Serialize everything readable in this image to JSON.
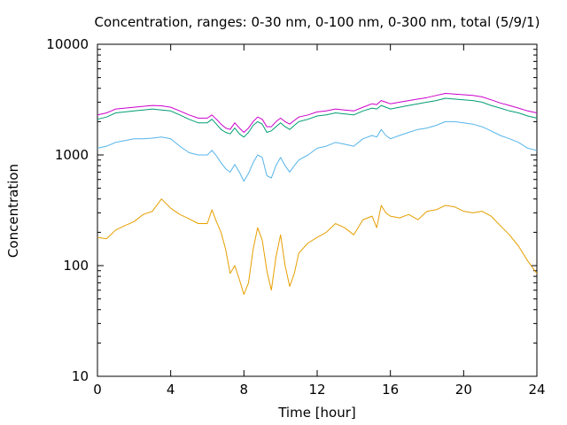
{
  "chart_data": {
    "type": "line",
    "title": "Concentration, ranges: 0-30 nm, 0-100 nm, 0-300 nm, total (5/9/1)",
    "xlabel": "Time [hour]",
    "ylabel": "Concentration",
    "xlim": [
      0,
      24
    ],
    "ylim": [
      10,
      10000
    ],
    "yscale": "log",
    "grid": false,
    "legend": "none",
    "x_ticks": [
      0,
      4,
      8,
      12,
      16,
      20,
      24
    ],
    "x_tick_labels": [
      "0",
      "4",
      "8",
      "12",
      "16",
      "20",
      "24"
    ],
    "y_ticks": [
      10,
      100,
      1000,
      10000
    ],
    "y_tick_labels": [
      "10",
      "100",
      "1000",
      "10000"
    ],
    "x": [
      0,
      0.5,
      1,
      1.5,
      2,
      2.5,
      3,
      3.5,
      4,
      4.5,
      5,
      5.5,
      6,
      6.25,
      6.5,
      6.75,
      7,
      7.25,
      7.5,
      7.75,
      8,
      8.25,
      8.5,
      8.75,
      9,
      9.25,
      9.5,
      9.75,
      10,
      10.25,
      10.5,
      10.75,
      11,
      11.5,
      12,
      12.5,
      13,
      13.5,
      14,
      14.5,
      15,
      15.25,
      15.5,
      15.75,
      16,
      16.5,
      17,
      17.5,
      18,
      18.5,
      19,
      19.5,
      20,
      20.5,
      21,
      21.5,
      22,
      22.5,
      23,
      23.5,
      24
    ],
    "series": [
      {
        "color": "#e69f00",
        "values": [
          180,
          175,
          210,
          230,
          250,
          290,
          310,
          400,
          330,
          290,
          265,
          240,
          240,
          320,
          250,
          200,
          140,
          85,
          100,
          75,
          55,
          70,
          140,
          220,
          170,
          90,
          60,
          120,
          190,
          100,
          65,
          85,
          130,
          160,
          180,
          200,
          240,
          220,
          190,
          260,
          280,
          220,
          350,
          300,
          280,
          270,
          290,
          260,
          310,
          320,
          350,
          340,
          310,
          300,
          310,
          280,
          230,
          190,
          150,
          110,
          85
        ]
      },
      {
        "color": "#56b4e9",
        "values": [
          1150,
          1200,
          1300,
          1350,
          1400,
          1400,
          1420,
          1450,
          1400,
          1200,
          1050,
          1000,
          1000,
          1100,
          980,
          850,
          750,
          700,
          820,
          700,
          580,
          680,
          850,
          1000,
          950,
          650,
          620,
          800,
          950,
          800,
          700,
          800,
          900,
          1000,
          1150,
          1200,
          1300,
          1250,
          1200,
          1400,
          1500,
          1450,
          1700,
          1500,
          1400,
          1500,
          1600,
          1700,
          1750,
          1850,
          2000,
          2000,
          1950,
          1900,
          1800,
          1650,
          1500,
          1400,
          1300,
          1150,
          1100
        ]
      },
      {
        "color": "#009e73",
        "values": [
          2100,
          2200,
          2400,
          2450,
          2500,
          2550,
          2600,
          2550,
          2500,
          2300,
          2100,
          1950,
          1950,
          2100,
          1900,
          1700,
          1600,
          1550,
          1750,
          1550,
          1450,
          1600,
          1850,
          2000,
          1900,
          1600,
          1650,
          1800,
          1950,
          1800,
          1700,
          1850,
          2000,
          2100,
          2250,
          2300,
          2400,
          2350,
          2300,
          2500,
          2650,
          2600,
          2800,
          2700,
          2600,
          2700,
          2800,
          2900,
          3000,
          3100,
          3250,
          3200,
          3150,
          3100,
          3000,
          2800,
          2650,
          2500,
          2400,
          2250,
          2150
        ]
      },
      {
        "color": "#cc00cc",
        "values": [
          2300,
          2400,
          2600,
          2650,
          2700,
          2750,
          2800,
          2780,
          2700,
          2500,
          2300,
          2150,
          2150,
          2300,
          2100,
          1900,
          1750,
          1700,
          1950,
          1750,
          1600,
          1750,
          2000,
          2200,
          2100,
          1800,
          1800,
          2000,
          2150,
          2000,
          1900,
          2050,
          2200,
          2300,
          2450,
          2500,
          2600,
          2550,
          2500,
          2700,
          2900,
          2850,
          3100,
          3000,
          2900,
          3000,
          3100,
          3200,
          3300,
          3450,
          3600,
          3550,
          3500,
          3450,
          3350,
          3150,
          2950,
          2800,
          2650,
          2500,
          2400
        ]
      }
    ]
  }
}
